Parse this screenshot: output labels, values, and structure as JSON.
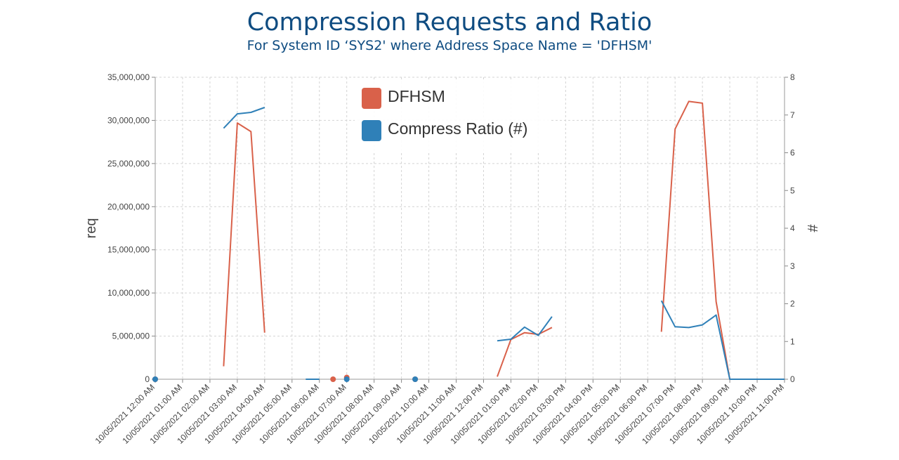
{
  "chart_data": {
    "type": "line",
    "title": "Compression Requests and Ratio",
    "subtitle": "For System ID ‘SYS2' where Address Space Name = 'DFHSM'",
    "ylabel_left": "req",
    "ylabel_right": "#",
    "ylim_left": [
      0,
      35000000
    ],
    "ylim_right": [
      0,
      8
    ],
    "yticks_left": [
      "35,000,000",
      "30,000,000",
      "25,000,000",
      "20,000,000",
      "15,000,000",
      "10,000,000",
      "5,000,000",
      "0"
    ],
    "yticks_right": [
      "8",
      "7",
      "6",
      "5",
      "4",
      "3",
      "2",
      "1",
      "0"
    ],
    "grid": true,
    "legend_position": "top-center",
    "x": [
      "10/05/2021 12:00 AM",
      "10/05/2021 01:00 AM",
      "10/05/2021 02:00 AM",
      "10/05/2021 03:00 AM",
      "10/05/2021 04:00 AM",
      "10/05/2021 05:00 AM",
      "10/05/2021 06:00 AM",
      "10/05/2021 07:00 AM",
      "10/05/2021 08:00 AM",
      "10/05/2021 09:00 AM",
      "10/05/2021 10:00 AM",
      "10/05/2021 11:00 AM",
      "10/05/2021 12:00 PM",
      "10/05/2021 01:00 PM",
      "10/05/2021 02:00 PM",
      "10/05/2021 03:00 PM",
      "10/05/2021 04:00 PM",
      "10/05/2021 05:00 PM",
      "10/05/2021 06:00 PM",
      "10/05/2021 07:00 PM",
      "10/05/2021 08:00 PM",
      "10/05/2021 09:00 PM",
      "10/05/2021 10:00 PM",
      "10/05/2021 11:00 PM"
    ],
    "series": [
      {
        "name": "DFHSM",
        "axis": "left",
        "color": "#d9614a",
        "segments": [
          [
            [
              0,
              0
            ]
          ],
          [
            [
              2.5,
              1500000
            ],
            [
              3.0,
              29700000
            ],
            [
              3.5,
              28700000
            ],
            [
              4.0,
              5400000
            ]
          ],
          [
            [
              6.5,
              0
            ]
          ],
          [
            [
              7.0,
              200000
            ]
          ],
          [
            [
              9.5,
              0
            ]
          ],
          [
            [
              12.5,
              300000
            ],
            [
              13.0,
              4600000
            ],
            [
              13.5,
              5400000
            ],
            [
              14.0,
              5200000
            ],
            [
              14.5,
              6000000
            ]
          ],
          [
            [
              18.5,
              5500000
            ],
            [
              19.0,
              29000000
            ],
            [
              19.5,
              32200000
            ],
            [
              20.0,
              32000000
            ],
            [
              20.5,
              9000000
            ],
            [
              21.0,
              0
            ],
            [
              22.0,
              0
            ],
            [
              23.0,
              0
            ]
          ]
        ]
      },
      {
        "name": "Compress Ratio (#)",
        "axis": "right",
        "color": "#2f80b8",
        "segments": [
          [
            [
              0,
              0
            ]
          ],
          [
            [
              2.5,
              6.65
            ],
            [
              3.0,
              7.03
            ],
            [
              3.5,
              7.07
            ],
            [
              4.0,
              7.2
            ]
          ],
          [
            [
              5.5,
              0
            ],
            [
              6.0,
              0
            ]
          ],
          [
            [
              7.0,
              0
            ]
          ],
          [
            [
              9.5,
              0
            ]
          ],
          [
            [
              12.5,
              1.02
            ],
            [
              13.0,
              1.06
            ],
            [
              13.5,
              1.38
            ],
            [
              14.0,
              1.16
            ],
            [
              14.5,
              1.66
            ]
          ],
          [
            [
              18.5,
              2.08
            ],
            [
              19.0,
              1.39
            ],
            [
              19.5,
              1.37
            ],
            [
              20.0,
              1.44
            ],
            [
              20.5,
              1.7
            ],
            [
              21.0,
              0
            ],
            [
              22.0,
              0
            ],
            [
              23.0,
              0
            ]
          ]
        ]
      }
    ]
  }
}
